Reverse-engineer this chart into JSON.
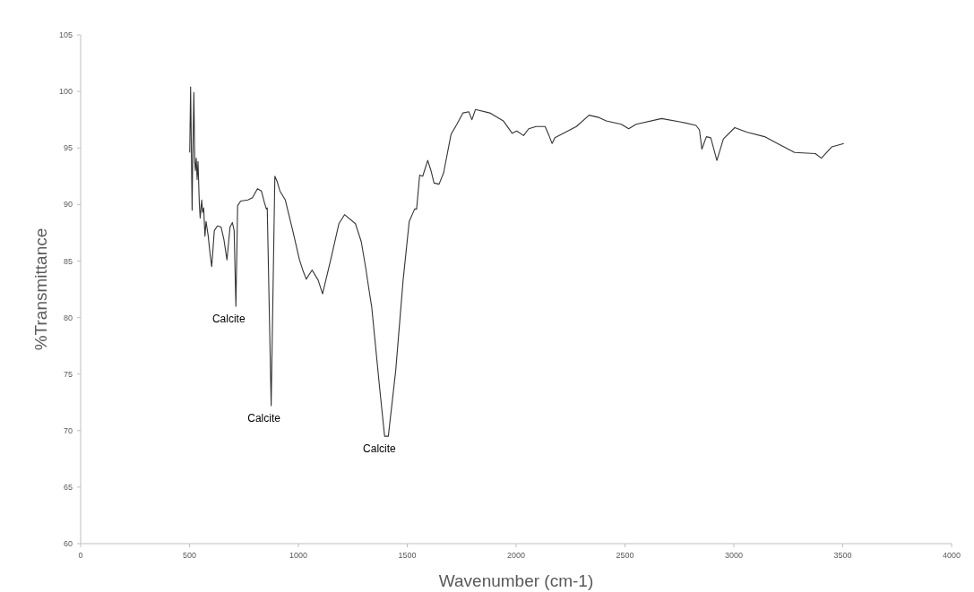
{
  "chart_data": {
    "type": "line",
    "xlabel": "Wavenumber (cm-1)",
    "ylabel": "%Transmittance",
    "xlim": [
      0,
      4000
    ],
    "xticks": [
      0,
      500,
      1000,
      1500,
      2000,
      2500,
      3000,
      3500,
      4000
    ],
    "ylim": [
      60,
      105
    ],
    "yticks": [
      60,
      65,
      70,
      75,
      80,
      85,
      90,
      95,
      100,
      105
    ],
    "grid": false,
    "marker": "none",
    "line_style": "solid",
    "annotations": [
      {
        "text": "Calcite",
        "x": 713,
        "y": 81
      },
      {
        "text": "Calcite",
        "x": 875,
        "y": 72.2
      },
      {
        "text": "Calcite",
        "x": 1405,
        "y": 69.5
      }
    ],
    "series": [
      {
        "color": "#333333",
        "x": [
          501,
          505,
          512,
          514,
          520,
          524,
          527,
          531,
          535,
          539,
          545,
          549,
          556,
          560,
          565,
          571,
          576,
          586,
          594,
          602,
          614,
          628,
          645,
          658,
          672,
          686,
          697,
          705,
          713,
          721,
          735,
          768,
          789,
          812,
          830,
          845,
          853,
          857,
          875,
          892,
          903,
          915,
          940,
          974,
          1005,
          1022,
          1036,
          1063,
          1091,
          1111,
          1152,
          1186,
          1212,
          1262,
          1289,
          1310,
          1324,
          1337,
          1372,
          1396,
          1413,
          1447,
          1481,
          1509,
          1534,
          1543,
          1557,
          1571,
          1594,
          1609,
          1623,
          1646,
          1667,
          1701,
          1728,
          1756,
          1783,
          1797,
          1813,
          1879,
          1941,
          1982,
          2003,
          2034,
          2058,
          2092,
          2133,
          2151,
          2165,
          2178,
          2277,
          2335,
          2380,
          2414,
          2483,
          2517,
          2551,
          2668,
          2757,
          2826,
          2842,
          2853,
          2874,
          2894,
          2922,
          2952,
          3004,
          3059,
          3141,
          3210,
          3279,
          3374,
          3402,
          3450,
          3505
        ],
        "values": [
          94.6,
          100.4,
          89.5,
          93.0,
          99.9,
          93.8,
          93.0,
          94.1,
          92.2,
          93.8,
          90.1,
          88.8,
          90.4,
          89.3,
          89.7,
          87.2,
          88.5,
          87.2,
          85.7,
          84.5,
          87.7,
          88.1,
          88.0,
          86.9,
          85.1,
          88.0,
          88.4,
          87.7,
          81.0,
          89.9,
          90.3,
          90.4,
          90.6,
          91.4,
          91.2,
          90.1,
          89.6,
          89.7,
          72.2,
          92.5,
          92.0,
          91.2,
          90.4,
          87.7,
          85.1,
          84.1,
          83.4,
          84.2,
          83.3,
          82.1,
          85.4,
          88.3,
          89.1,
          88.3,
          86.7,
          84.3,
          82.5,
          80.9,
          74.0,
          69.5,
          69.5,
          75.3,
          83.3,
          88.5,
          89.6,
          89.6,
          92.6,
          92.5,
          93.9,
          93.0,
          91.9,
          91.8,
          92.8,
          96.2,
          97.1,
          98.1,
          98.2,
          97.5,
          98.4,
          98.1,
          97.4,
          96.3,
          96.5,
          96.1,
          96.7,
          96.9,
          96.9,
          96.1,
          95.4,
          95.9,
          96.9,
          97.9,
          97.7,
          97.4,
          97.1,
          96.7,
          97.1,
          97.6,
          97.3,
          97.0,
          96.6,
          94.9,
          96.0,
          95.9,
          93.9,
          95.8,
          96.8,
          96.4,
          96.0,
          95.3,
          94.6,
          94.5,
          94.1,
          95.1,
          95.4
        ]
      }
    ]
  }
}
